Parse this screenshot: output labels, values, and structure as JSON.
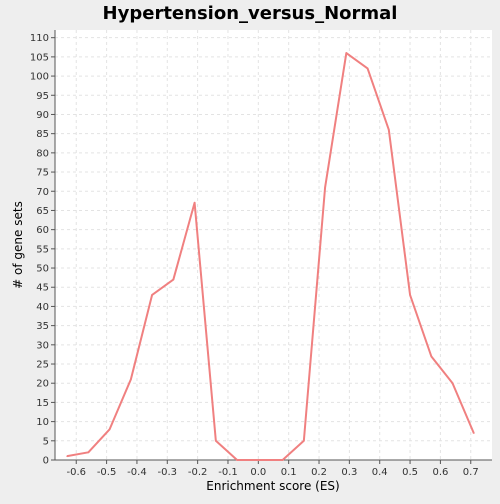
{
  "chart_data": {
    "type": "line",
    "title": "Hypertension_versus_Normal",
    "xlabel": "Enrichment score (ES)",
    "ylabel": "# of gene sets",
    "xlim": [
      -0.67,
      0.77
    ],
    "ylim": [
      0,
      112
    ],
    "xticks": [
      -0.6,
      -0.5,
      -0.4,
      -0.3,
      -0.2,
      -0.1,
      0.0,
      0.1,
      0.2,
      0.3,
      0.4,
      0.5,
      0.6,
      0.7
    ],
    "xtick_labels": [
      "-0.6",
      "-0.5",
      "-0.4",
      "-0.3",
      "-0.2",
      "-0.1",
      "0.0",
      "0.1",
      "0.2",
      "0.3",
      "0.4",
      "0.5",
      "0.6",
      "0.7"
    ],
    "yticks": [
      0,
      5,
      10,
      15,
      20,
      25,
      30,
      35,
      40,
      45,
      50,
      55,
      60,
      65,
      70,
      75,
      80,
      85,
      90,
      95,
      100,
      105,
      110
    ],
    "grid": true,
    "line_color": "#f08080",
    "series": [
      {
        "x": [
          -0.63,
          -0.56,
          -0.49,
          -0.42,
          -0.35,
          -0.28,
          -0.21,
          -0.14,
          -0.07,
          0.0,
          0.08,
          0.15,
          0.22,
          0.29,
          0.36,
          0.43,
          0.5,
          0.57,
          0.64,
          0.71
        ],
        "values": [
          1,
          2,
          8,
          21,
          43,
          47,
          67,
          5,
          0,
          0,
          0,
          5,
          71,
          106,
          102,
          86,
          43,
          27,
          20,
          7
        ]
      }
    ]
  }
}
